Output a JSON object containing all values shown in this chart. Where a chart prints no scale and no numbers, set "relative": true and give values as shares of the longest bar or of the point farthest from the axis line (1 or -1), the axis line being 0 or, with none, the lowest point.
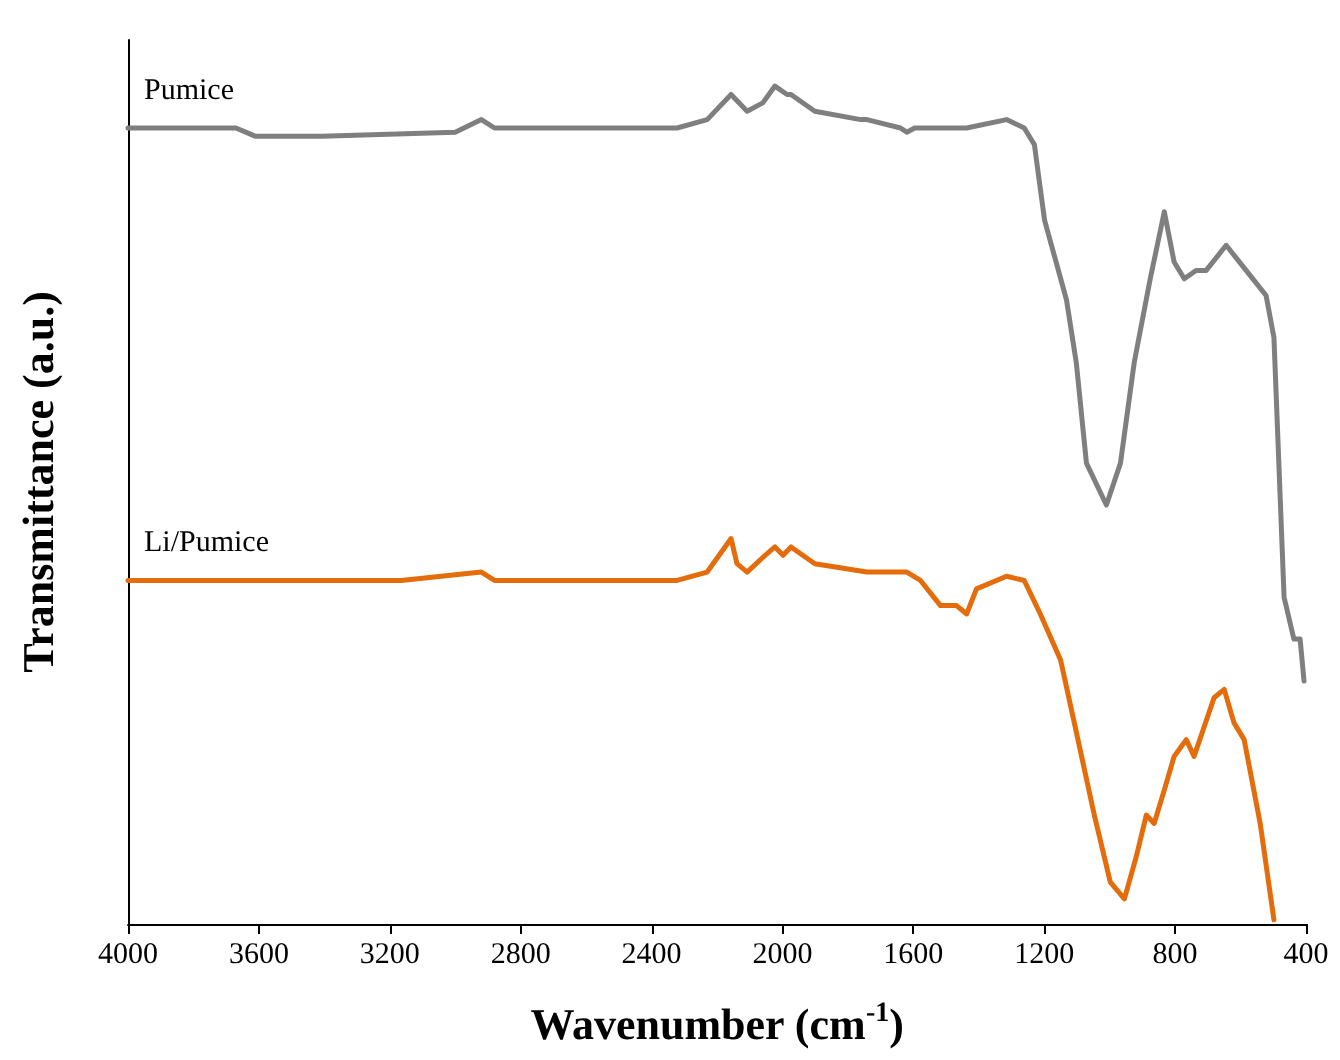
{
  "chart_data": {
    "type": "line",
    "xlabel": "Wavenumber (cm$^{-1}$)",
    "ylabel": "Transmittance (a.u.)",
    "relative": true,
    "xlim": [
      4000,
      400
    ],
    "xticks": [
      4000,
      3600,
      3200,
      2800,
      2400,
      2000,
      1600,
      1200,
      800,
      400
    ],
    "grid": false,
    "legend": false,
    "marker": "none",
    "line_style": "solid",
    "series": [
      {
        "name": "Pumice",
        "color": "#7f7f7f",
        "x": [
          4000,
          3670,
          3610,
          3408,
          3000,
          2920,
          2880,
          2847,
          2800,
          2390,
          2322,
          2230,
          2157,
          2108,
          2060,
          2023,
          1986,
          1974,
          1901,
          1761,
          1742,
          1639,
          1620,
          1596,
          1437,
          1315,
          1261,
          1230,
          1199,
          1132,
          1102,
          1071,
          1010,
          967,
          925,
          876,
          833,
          803,
          772,
          736,
          705,
          644,
          583,
          522,
          498,
          467,
          437,
          418,
          406
        ],
        "values": [
          0.95,
          0.95,
          0.94,
          0.94,
          0.945,
          0.96,
          0.95,
          0.95,
          0.95,
          0.95,
          0.95,
          0.96,
          0.99,
          0.97,
          0.98,
          1,
          0.99,
          0.99,
          0.97,
          0.96,
          0.96,
          0.95,
          0.945,
          0.95,
          0.95,
          0.96,
          0.95,
          0.93,
          0.84,
          0.745,
          0.67,
          0.55,
          0.5,
          0.55,
          0.67,
          0.77,
          0.85,
          0.79,
          0.77,
          0.78,
          0.78,
          0.81,
          0.78,
          0.75,
          0.7,
          0.39,
          0.34,
          0.34,
          0.29
        ]
      },
      {
        "name": "Li/Pumice",
        "color": "#e46c0a",
        "x": [
          4000,
          3165,
          2920,
          2880,
          2847,
          2554,
          2390,
          2322,
          2230,
          2157,
          2139,
          2108,
          2053,
          2023,
          1998,
          1974,
          1901,
          1742,
          1639,
          1620,
          1578,
          1517,
          1468,
          1437,
          1407,
          1315,
          1261,
          1212,
          1150,
          1108,
          1047,
          998,
          955,
          919,
          888,
          864,
          833,
          803,
          766,
          742,
          681,
          650,
          620,
          589,
          540,
          498
        ],
        "values": [
          0.41,
          0.41,
          0.42,
          0.41,
          0.41,
          0.41,
          0.41,
          0.41,
          0.42,
          0.46,
          0.43,
          0.42,
          0.44,
          0.45,
          0.44,
          0.45,
          0.43,
          0.42,
          0.42,
          0.42,
          0.41,
          0.38,
          0.38,
          0.37,
          0.4,
          0.415,
          0.41,
          0.37,
          0.315,
          0.24,
          0.13,
          0.05,
          0.03,
          0.08,
          0.13,
          0.12,
          0.16,
          0.2,
          0.22,
          0.2,
          0.27,
          0.28,
          0.24,
          0.22,
          0.12,
          0.005
        ]
      }
    ]
  }
}
